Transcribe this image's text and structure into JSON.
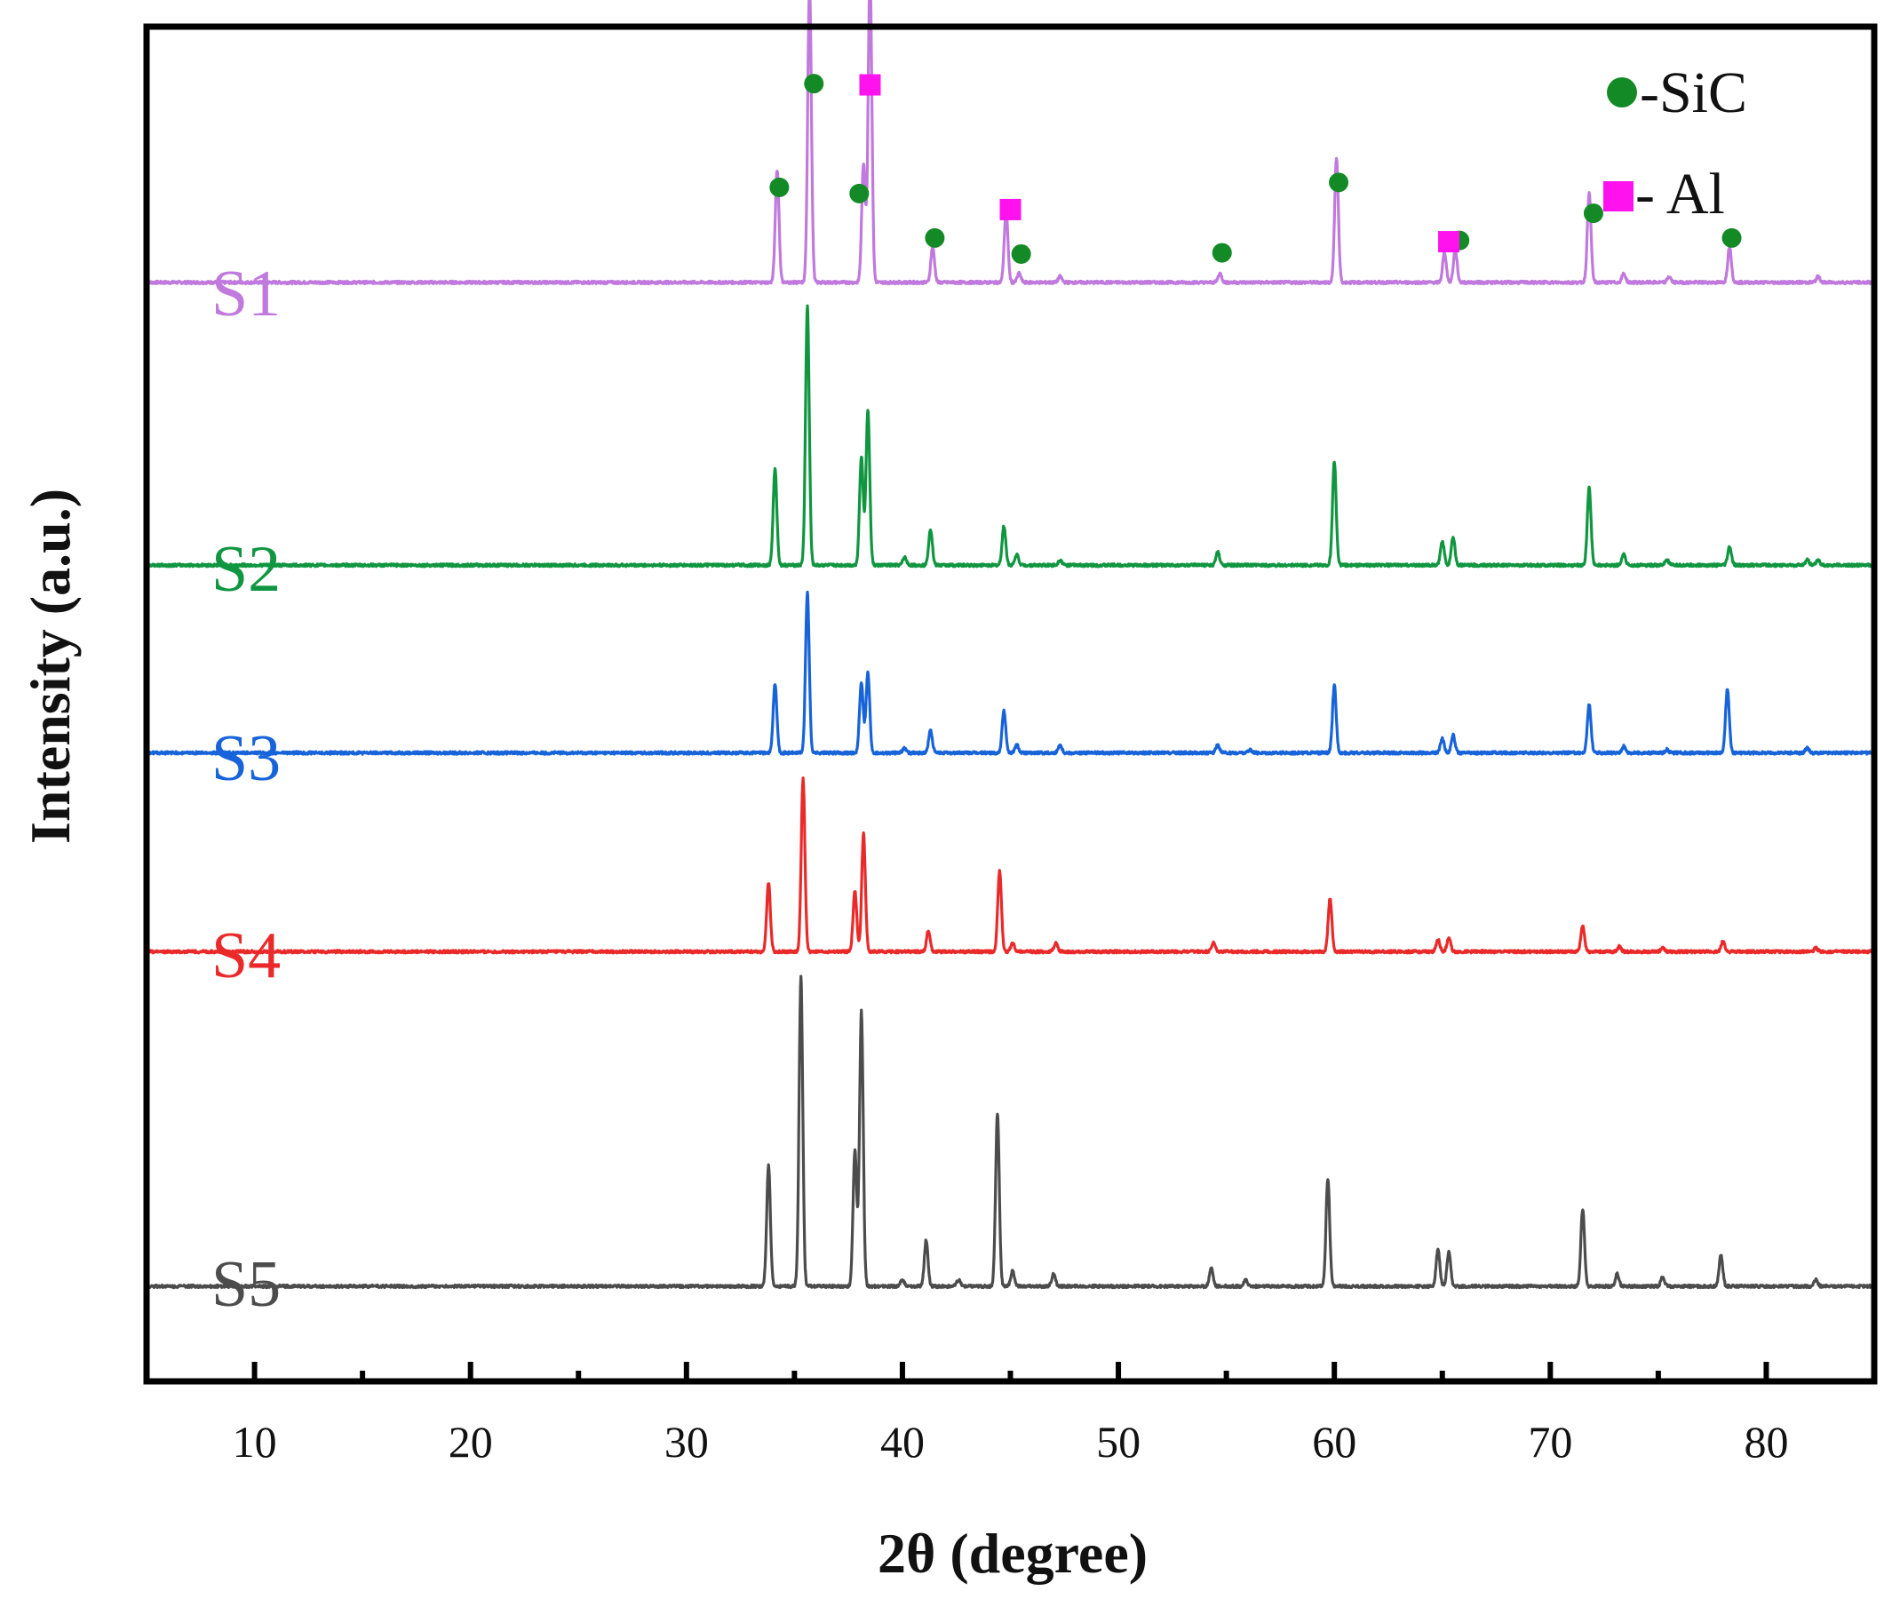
{
  "colors": {
    "S1": "#c079dc",
    "S2": "#109640",
    "S3": "#1763d9",
    "S4": "#ea2a2a",
    "S5": "#4c4c4c",
    "sic_marker": "#138a26",
    "al_marker": "#ff12ee",
    "frame": "#000000"
  },
  "chart_data": {
    "type": "line",
    "title": "",
    "xlabel": "2θ (degree)",
    "ylabel": "Intensity (a.u.)",
    "xlim": [
      5,
      85
    ],
    "ylim": [
      0,
      1
    ],
    "x_ticks": [
      10,
      20,
      30,
      40,
      50,
      60,
      70,
      80
    ],
    "x_minor_ticks": [
      15,
      25,
      35,
      45,
      55,
      65,
      75
    ],
    "y_ticks": [],
    "grid": false,
    "legend": {
      "position": "top-right",
      "entries": [
        {
          "marker": "circle",
          "text": "-SiC",
          "color": "#138a26"
        },
        {
          "marker": "square",
          "text": "- Al",
          "color": "#ff12ee"
        }
      ]
    },
    "series": [
      {
        "name": "S1",
        "color": "#c079dc",
        "baseline": 0.854,
        "scale": 0.0024,
        "peaks": [
          [
            34.2,
            38
          ],
          [
            35.7,
            100
          ],
          [
            38.2,
            40
          ],
          [
            38.5,
            105
          ],
          [
            41.4,
            12
          ],
          [
            44.8,
            24
          ],
          [
            45.4,
            3
          ],
          [
            47.3,
            2
          ],
          [
            54.7,
            3
          ],
          [
            60.1,
            42
          ],
          [
            65.1,
            10
          ],
          [
            65.6,
            11
          ],
          [
            71.8,
            30
          ],
          [
            73.4,
            3
          ],
          [
            75.5,
            2
          ],
          [
            78.3,
            12
          ],
          [
            82.4,
            2
          ]
        ]
      },
      {
        "name": "S2",
        "color": "#109640",
        "baseline": 0.625,
        "scale": 0.0021,
        "peaks": [
          [
            34.1,
            37
          ],
          [
            35.6,
            100
          ],
          [
            38.1,
            42
          ],
          [
            38.4,
            60
          ],
          [
            40.1,
            3
          ],
          [
            41.3,
            14
          ],
          [
            44.7,
            15
          ],
          [
            45.3,
            4
          ],
          [
            47.3,
            2
          ],
          [
            54.6,
            5
          ],
          [
            60.0,
            40
          ],
          [
            65.0,
            9
          ],
          [
            65.5,
            11
          ],
          [
            71.8,
            30
          ],
          [
            73.4,
            4
          ],
          [
            75.4,
            2
          ],
          [
            78.3,
            7
          ],
          [
            81.9,
            2
          ],
          [
            82.4,
            2
          ]
        ]
      },
      {
        "name": "S3",
        "color": "#1763d9",
        "baseline": 0.473,
        "scale": 0.0013,
        "peaks": [
          [
            34.1,
            43
          ],
          [
            35.6,
            100
          ],
          [
            38.1,
            44
          ],
          [
            38.4,
            50
          ],
          [
            40.1,
            3
          ],
          [
            41.3,
            14
          ],
          [
            44.7,
            26
          ],
          [
            45.3,
            5
          ],
          [
            47.3,
            5
          ],
          [
            54.6,
            5
          ],
          [
            56.1,
            2
          ],
          [
            60.0,
            42
          ],
          [
            65.0,
            9
          ],
          [
            65.5,
            11
          ],
          [
            71.8,
            30
          ],
          [
            73.4,
            4
          ],
          [
            75.4,
            2
          ],
          [
            78.2,
            40
          ],
          [
            81.9,
            3
          ]
        ]
      },
      {
        "name": "S4",
        "color": "#ea2a2a",
        "baseline": 0.312,
        "scale": 0.0014,
        "peaks": [
          [
            33.8,
            40
          ],
          [
            35.4,
            100
          ],
          [
            37.8,
            35
          ],
          [
            38.2,
            68
          ],
          [
            41.2,
            12
          ],
          [
            44.5,
            47
          ],
          [
            45.1,
            5
          ],
          [
            47.1,
            5
          ],
          [
            54.4,
            5
          ],
          [
            59.8,
            31
          ],
          [
            64.8,
            7
          ],
          [
            65.3,
            8
          ],
          [
            71.5,
            15
          ],
          [
            73.2,
            3
          ],
          [
            75.2,
            2
          ],
          [
            78.0,
            6
          ],
          [
            82.3,
            2
          ]
        ]
      },
      {
        "name": "S5",
        "color": "#4c4c4c",
        "baseline": 0.041,
        "scale": 0.0025,
        "peaks": [
          [
            33.8,
            39
          ],
          [
            35.3,
            100
          ],
          [
            37.8,
            44
          ],
          [
            38.1,
            89
          ],
          [
            40.0,
            2
          ],
          [
            41.1,
            15
          ],
          [
            42.6,
            2
          ],
          [
            44.4,
            56
          ],
          [
            45.1,
            5
          ],
          [
            47.0,
            4
          ],
          [
            54.3,
            6
          ],
          [
            55.9,
            2
          ],
          [
            59.7,
            35
          ],
          [
            64.8,
            12
          ],
          [
            65.3,
            11
          ],
          [
            71.5,
            25
          ],
          [
            73.1,
            4
          ],
          [
            75.2,
            3
          ],
          [
            77.9,
            10
          ],
          [
            82.3,
            2
          ]
        ]
      }
    ],
    "phase_markers": [
      {
        "phase": "SiC",
        "marker": "circle",
        "x": 34.3,
        "y": 0.931
      },
      {
        "phase": "SiC",
        "marker": "circle",
        "x": 35.9,
        "y": 1.015
      },
      {
        "phase": "SiC",
        "marker": "circle",
        "x": 38.0,
        "y": 0.926
      },
      {
        "phase": "SiC",
        "marker": "circle",
        "x": 41.5,
        "y": 0.89
      },
      {
        "phase": "SiC",
        "marker": "circle",
        "x": 45.5,
        "y": 0.877
      },
      {
        "phase": "SiC",
        "marker": "circle",
        "x": 54.8,
        "y": 0.878
      },
      {
        "phase": "SiC",
        "marker": "circle",
        "x": 60.2,
        "y": 0.935
      },
      {
        "phase": "SiC",
        "marker": "circle",
        "x": 65.8,
        "y": 0.888
      },
      {
        "phase": "SiC",
        "marker": "circle",
        "x": 72.0,
        "y": 0.91
      },
      {
        "phase": "SiC",
        "marker": "circle",
        "x": 78.4,
        "y": 0.89
      },
      {
        "phase": "Al",
        "marker": "square",
        "x": 38.5,
        "y": 1.014
      },
      {
        "phase": "Al",
        "marker": "square",
        "x": 45.0,
        "y": 0.913
      },
      {
        "phase": "Al",
        "marker": "square",
        "x": 65.3,
        "y": 0.887
      }
    ]
  }
}
